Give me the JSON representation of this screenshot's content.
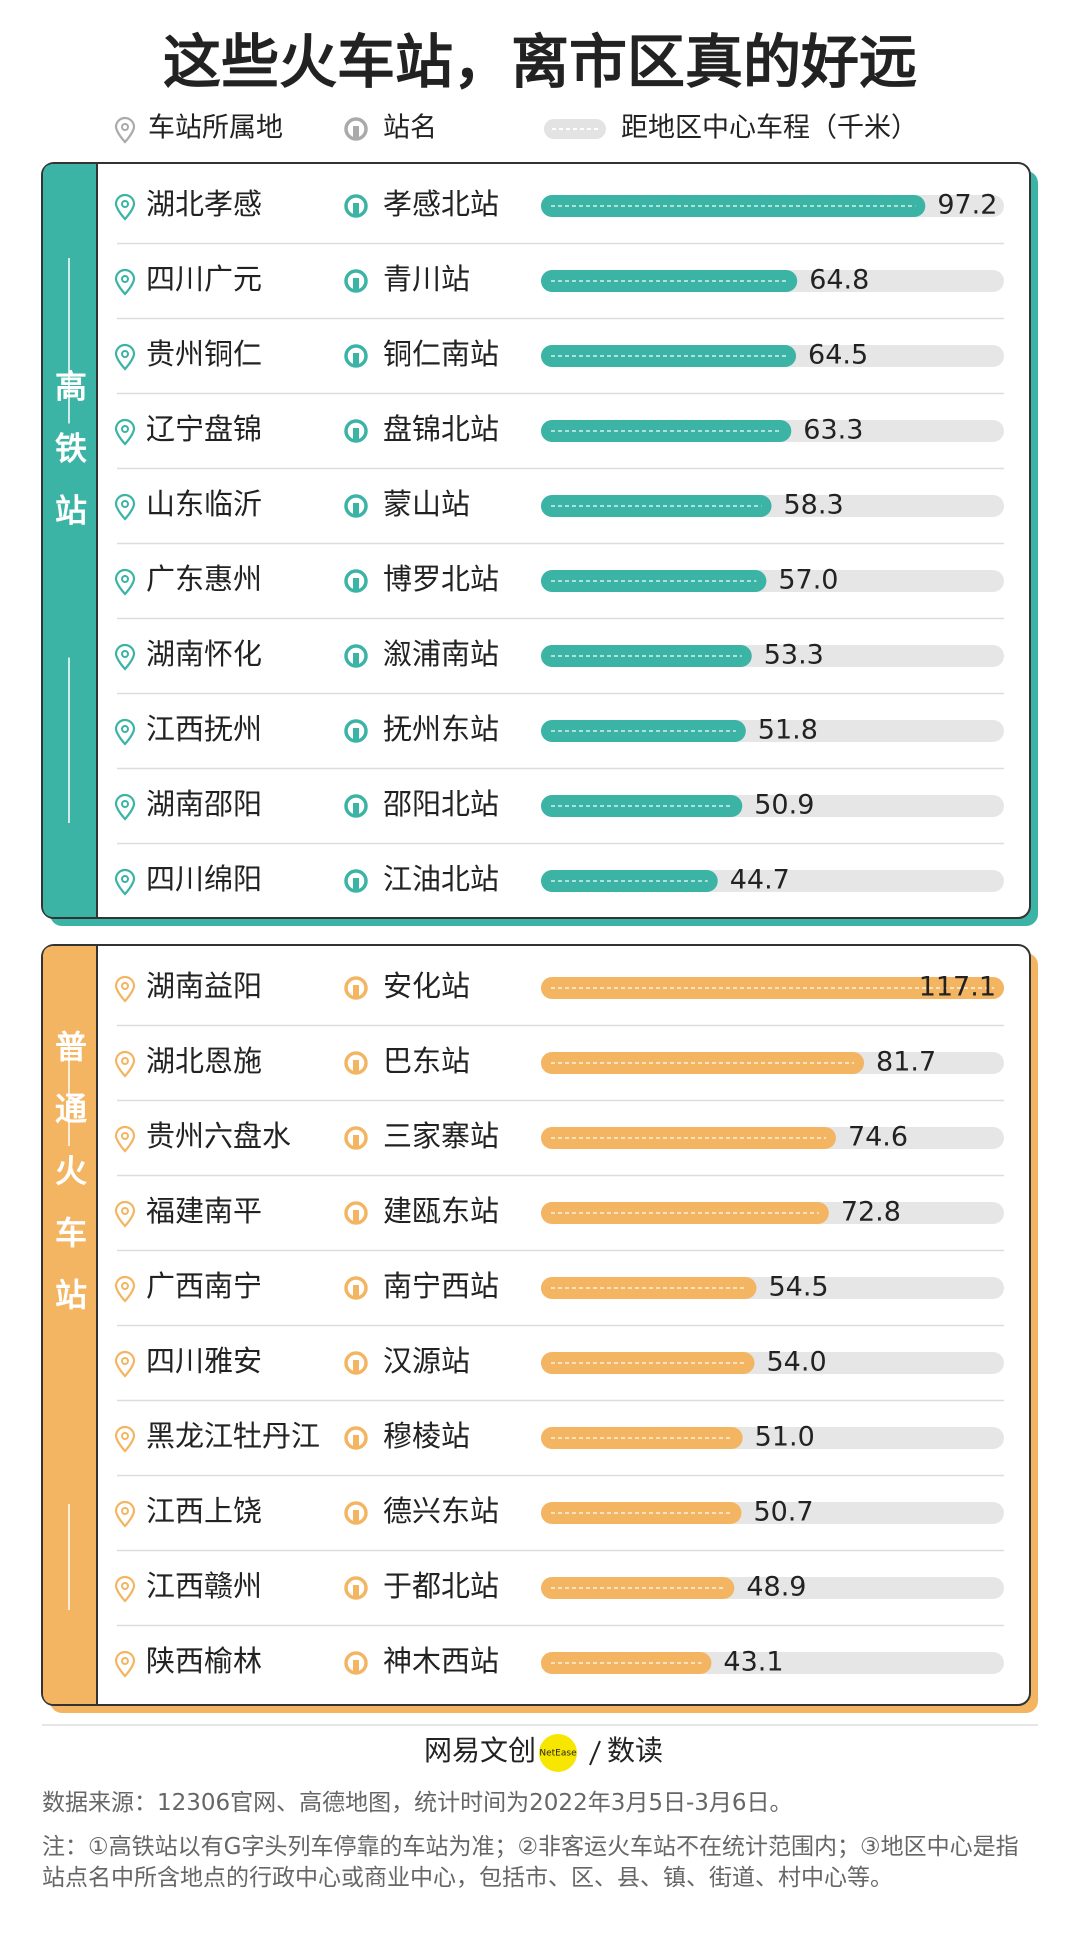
{
  "title": "这些火车站，离市区真的好远",
  "legend": {
    "location": "车站所属地",
    "station": "站名",
    "distance": "距地区中心车程（千米）"
  },
  "chart_data": [
    {
      "type": "bar",
      "title": "高铁站",
      "color": "#3bb3a5",
      "xlim": [
        0,
        117.1
      ],
      "categories": [
        "湖北孝感",
        "四川广元",
        "贵州铜仁",
        "辽宁盘锦",
        "山东临沂",
        "广东惠州",
        "湖南怀化",
        "江西抚州",
        "湖南邵阳",
        "四川绵阳"
      ],
      "stations": [
        "孝感北站",
        "青川站",
        "铜仁南站",
        "盘锦北站",
        "蒙山站",
        "博罗北站",
        "溆浦南站",
        "抚州东站",
        "邵阳北站",
        "江油北站"
      ],
      "values": [
        97.2,
        64.8,
        64.5,
        63.3,
        58.3,
        57.0,
        53.3,
        51.8,
        50.9,
        44.7
      ],
      "value_labels": [
        "97.2",
        "64.8",
        "64.5",
        "63.3",
        "58.3",
        "57.0",
        "53.3",
        "51.8",
        "50.9",
        "44.7"
      ]
    },
    {
      "type": "bar",
      "title": "普通火车站",
      "color": "#f4b563",
      "xlim": [
        0,
        117.1
      ],
      "categories": [
        "湖南益阳",
        "湖北恩施",
        "贵州六盘水",
        "福建南平",
        "广西南宁",
        "四川雅安",
        "黑龙江牡丹江",
        "江西上饶",
        "江西赣州",
        "陕西榆林"
      ],
      "stations": [
        "安化站",
        "巴东站",
        "三家寨站",
        "建瓯东站",
        "南宁西站",
        "汉源站",
        "穆棱站",
        "德兴东站",
        "于都北站",
        "神木西站"
      ],
      "values": [
        117.1,
        81.7,
        74.6,
        72.8,
        54.5,
        54.0,
        51.0,
        50.7,
        48.9,
        43.1
      ],
      "value_labels": [
        "117.1",
        "81.7",
        "74.6",
        "72.8",
        "54.5",
        "54.0",
        "51.0",
        "50.7",
        "48.9",
        "43.1"
      ]
    }
  ],
  "footer": {
    "brand": "网易文创",
    "brand_badge": "NetEase",
    "brand_sub": "数读",
    "source": "数据来源：12306官网、高德地图，统计时间为2022年3月5日-3月6日。",
    "note": "注：①高铁站以有G字头列车停靠的车站为准；②非客运火车站不在统计范围内；③地区中心是指站点名中所含地点的行政中心或商业中心，包括市、区、县、镇、街道、村中心等。"
  }
}
